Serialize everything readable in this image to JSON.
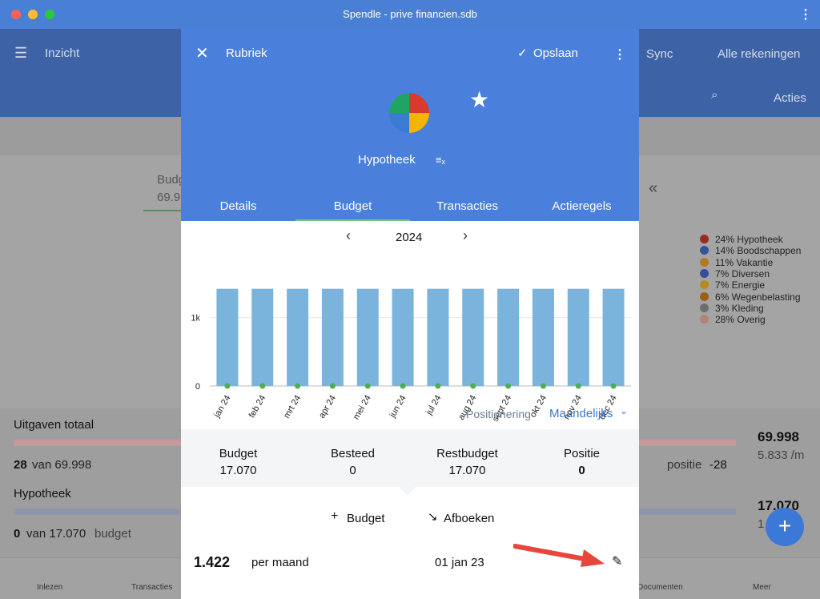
{
  "window": {
    "title": "Spendle - prive financien.sdb"
  },
  "background": {
    "header": {
      "title": "Inzicht",
      "sync": "Sync",
      "accounts": "Alle rekeningen",
      "actions": "Acties"
    },
    "budget_label": "Budg",
    "budget_value": "69.9",
    "legend": [
      "24% Hypotheek",
      "14% Boodschappen",
      "11% Vakantie",
      "7% Diversen",
      "7% Energie",
      "6% Wegenbelasting",
      "3% Kleding",
      "28% Overig"
    ],
    "legend_colors": [
      "#9a2a20",
      "#35539a",
      "#b37a1c",
      "#34509a",
      "#b68c1e",
      "#9a5e14",
      "#6e6e6e",
      "#b08478"
    ],
    "rows": [
      {
        "name": "Uitgaven totaal",
        "spent": "28",
        "of": "van 69.998",
        "total": "69.998",
        "monthly": "5.833 /m",
        "position_label": "positie",
        "position": "-28"
      },
      {
        "name": "Hypotheek",
        "spent": "0",
        "of": "van 17.070",
        "suffix": "budget",
        "total": "17.070",
        "monthly": "1"
      }
    ],
    "nav": [
      "Inlezen",
      "Transacties",
      "Documenten",
      "Meer"
    ]
  },
  "dialog": {
    "title": "Rubriek",
    "save": "Opslaan",
    "category": "Hypotheek",
    "tabs": [
      "Details",
      "Budget",
      "Transacties",
      "Actieregels"
    ],
    "active_tab": 1,
    "year": "2024",
    "chart": {
      "type": "bar",
      "categories": [
        "jan 24",
        "feb 24",
        "mrt 24",
        "apr 24",
        "mei 24",
        "jun 24",
        "jul 24",
        "aug 24",
        "sept 24",
        "okt 24",
        "nov 24",
        "dec 24"
      ],
      "series": [
        {
          "color": "#7ab4dc",
          "values": [
            1422,
            1422,
            1422,
            1422,
            1422,
            1422,
            1422,
            1422,
            1422,
            1422,
            1422,
            1422
          ]
        },
        {
          "color": "#4caf50",
          "values": [
            0,
            0,
            0,
            0,
            0,
            0,
            0,
            0,
            0,
            0,
            0,
            0
          ]
        }
      ],
      "ylim": [
        0,
        1500
      ],
      "yticks": [
        0,
        {
          "value": 1000,
          "label": "1k"
        }
      ],
      "grid": true
    },
    "positioning": "Positionering",
    "period": "Maandelijks",
    "summary": [
      {
        "label": "Budget",
        "value": "17.070"
      },
      {
        "label": "Besteed",
        "value": "0"
      },
      {
        "label": "Restbudget",
        "value": "17.070"
      },
      {
        "label": "Positie",
        "value": "0"
      }
    ],
    "add_budget": "Budget",
    "write_off": "Afboeken",
    "entry": {
      "amount": "1.422",
      "period": "per maand",
      "date": "01 jan 23"
    }
  }
}
